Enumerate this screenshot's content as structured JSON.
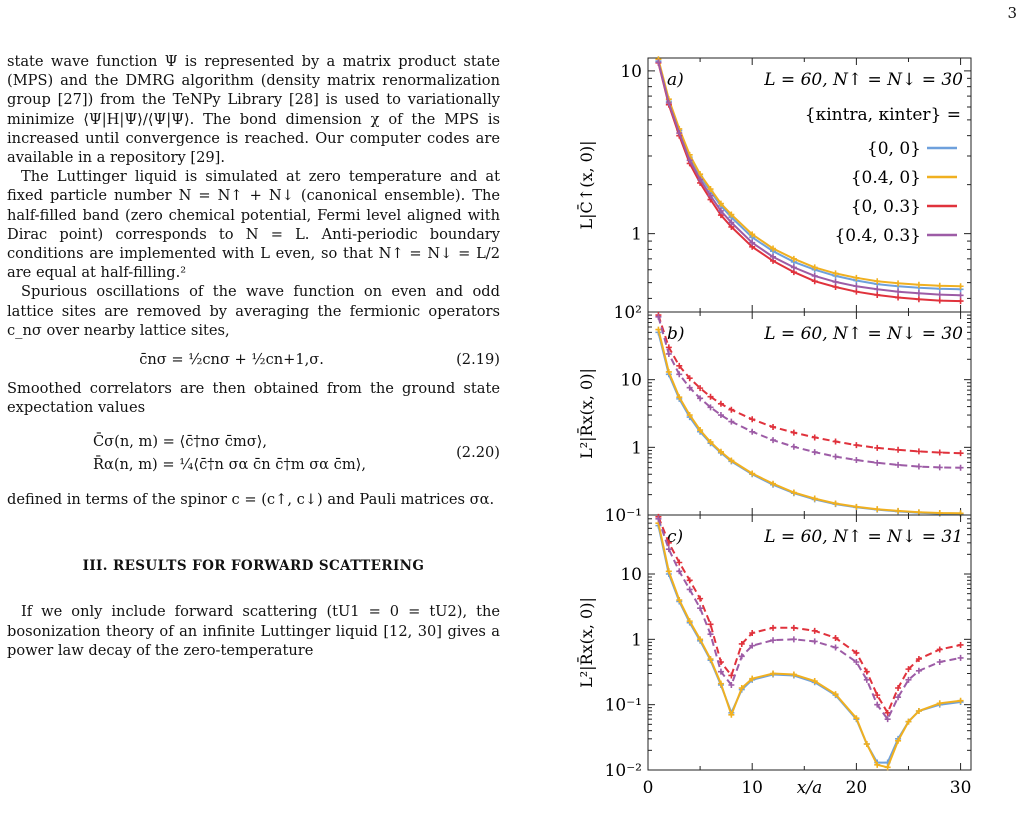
{
  "page_number": "3",
  "text": {
    "para1": "state wave function Ψ is represented by a matrix product state (MPS) and the DMRG algorithm (density matrix renormalization group [27]) from the TeNPy Library [28] is used to variationally minimize ⟨Ψ|H|Ψ⟩/⟨Ψ|Ψ⟩. The bond dimension χ of the MPS is increased until convergence is reached. Our computer codes are available in a repository [29].",
    "para2": "The Luttinger liquid is simulated at zero temperature and at fixed particle number N = N↑ + N↓ (canonical ensemble). The half-filled band (zero chemical potential, Fermi level aligned with Dirac point) corresponds to N = L. Anti-periodic boundary conditions are implemented with L even, so that N↑ = N↓ = L/2 are equal at half-filling.²",
    "para3": "Spurious oscillations of the wave function on even and odd lattice sites are removed by averaging the fermionic operators c_nσ over nearby lattice sites,",
    "eq219": "c̄nσ = ½cnσ + ½cn+1,σ.",
    "eq219_num": "(2.19)",
    "para4": "Smoothed correlators are then obtained from the ground state expectation values",
    "eq220_line1": "C̄σ(n, m) = ⟨c̄†nσ c̄mσ⟩,",
    "eq220_line2": "R̄α(n, m) = ¼⟨c̄†n σα c̄n  c̄†m σα c̄m⟩,",
    "eq220_num": "(2.20)",
    "para5": "defined in terms of the spinor c = (c↑, c↓) and Pauli matrices σα.",
    "heading": "III.   RESULTS FOR FORWARD SCATTERING",
    "para6": "If we only include forward scattering (tU1 = 0 = tU2), the bosonization theory of an infinite Luttinger liquid [12, 30] gives a power law decay of the zero-temperature"
  },
  "chart_data": [
    {
      "type": "line",
      "panel": "a)",
      "title": "L = 60,  N↑ = N↓ = 30",
      "ylabel": "L|C̄↑(x, 0)|",
      "yscale": "log",
      "ylim": [
        0.33,
        12
      ],
      "xlim": [
        0,
        31
      ],
      "yticks": [
        1,
        10
      ],
      "legend_title": "{κintra, κinter} =",
      "x": [
        1,
        2,
        3,
        4,
        5,
        6,
        7,
        8,
        10,
        12,
        14,
        16,
        18,
        20,
        22,
        24,
        26,
        28,
        30
      ],
      "series": [
        {
          "name": "{0, 0}",
          "color": "#6ea0dc",
          "values": [
            11.5,
            6.5,
            4.3,
            2.95,
            2.25,
            1.82,
            1.48,
            1.26,
            0.95,
            0.78,
            0.67,
            0.6,
            0.55,
            0.515,
            0.49,
            0.475,
            0.465,
            0.458,
            0.455
          ]
        },
        {
          "name": "{0.4, 0}",
          "color": "#f0b020",
          "values": [
            11.8,
            6.7,
            4.4,
            3.05,
            2.32,
            1.88,
            1.53,
            1.31,
            0.99,
            0.81,
            0.7,
            0.62,
            0.57,
            0.535,
            0.51,
            0.495,
            0.485,
            0.478,
            0.475
          ]
        },
        {
          "name": "{0, 0.3}",
          "color": "#e0323c",
          "values": [
            11.2,
            6.2,
            4.0,
            2.7,
            2.05,
            1.62,
            1.3,
            1.1,
            0.83,
            0.68,
            0.58,
            0.51,
            0.47,
            0.44,
            0.42,
            0.405,
            0.395,
            0.388,
            0.385
          ]
        },
        {
          "name": "{0.4, 0.3}",
          "color": "#9d5ca6",
          "values": [
            11.3,
            6.35,
            4.15,
            2.82,
            2.15,
            1.71,
            1.38,
            1.17,
            0.88,
            0.72,
            0.62,
            0.55,
            0.505,
            0.475,
            0.455,
            0.44,
            0.43,
            0.422,
            0.418
          ]
        }
      ]
    },
    {
      "type": "line",
      "panel": "b)",
      "title": "L = 60,  N↑ = N↓ = 30",
      "ylabel": "L²|R̄x(x, 0)|",
      "yscale": "log",
      "ylim": [
        0.1,
        100
      ],
      "xlim": [
        0,
        31
      ],
      "yticks": [
        "10⁻¹",
        "1",
        "10",
        "10²"
      ],
      "x": [
        1,
        2,
        3,
        4,
        5,
        6,
        7,
        8,
        10,
        12,
        14,
        16,
        18,
        20,
        22,
        24,
        26,
        28,
        30
      ],
      "series": [
        {
          "name": "{0, 0}",
          "color": "#6ea0dc",
          "values": [
            50,
            12,
            5.2,
            2.8,
            1.7,
            1.15,
            0.83,
            0.62,
            0.4,
            0.28,
            0.21,
            0.17,
            0.145,
            0.13,
            0.12,
            0.113,
            0.108,
            0.105,
            0.104
          ]
        },
        {
          "name": "{0.4, 0}",
          "color": "#f0b020",
          "values": [
            55,
            13,
            5.5,
            3.0,
            1.8,
            1.2,
            0.86,
            0.64,
            0.41,
            0.29,
            0.215,
            0.175,
            0.148,
            0.132,
            0.122,
            0.115,
            0.11,
            0.107,
            0.106
          ]
        },
        {
          "name": "{0, 0.3}",
          "color": "#e0323c",
          "values": [
            90,
            30,
            16,
            10.5,
            7.5,
            5.6,
            4.4,
            3.6,
            2.6,
            2.0,
            1.65,
            1.4,
            1.22,
            1.08,
            0.98,
            0.92,
            0.87,
            0.84,
            0.82
          ]
        },
        {
          "name": "{0.4, 0.3}",
          "color": "#9d5ca6",
          "values": [
            85,
            24,
            12,
            7.6,
            5.3,
            3.9,
            3.0,
            2.4,
            1.7,
            1.28,
            1.02,
            0.85,
            0.73,
            0.65,
            0.59,
            0.55,
            0.52,
            0.505,
            0.5
          ]
        }
      ]
    },
    {
      "type": "line",
      "panel": "c)",
      "title": "L = 60,  N↑ = N↓ = 31",
      "ylabel": "L²|R̄x(x, 0)|",
      "xlabel": "x/a",
      "yscale": "log",
      "ylim": [
        0.01,
        80
      ],
      "xlim": [
        0,
        31
      ],
      "xticks": [
        0,
        10,
        20,
        30
      ],
      "yticks": [
        "10⁻²",
        "10⁻¹",
        "1",
        "10"
      ],
      "x": [
        1,
        2,
        3,
        4,
        5,
        6,
        7,
        8,
        9,
        10,
        12,
        14,
        16,
        18,
        20,
        21,
        22,
        23,
        24,
        25,
        26,
        28,
        30
      ],
      "series": [
        {
          "name": "{0, 0}",
          "color": "#6ea0dc",
          "values": [
            55,
            10,
            3.8,
            1.8,
            0.95,
            0.48,
            0.2,
            0.075,
            0.17,
            0.24,
            0.29,
            0.28,
            0.22,
            0.14,
            0.06,
            0.025,
            0.013,
            0.013,
            0.03,
            0.055,
            0.08,
            0.1,
            0.11
          ]
        },
        {
          "name": "{0.4, 0}",
          "color": "#f0b020",
          "values": [
            60,
            11,
            4.0,
            1.9,
            1.0,
            0.5,
            0.21,
            0.07,
            0.18,
            0.25,
            0.3,
            0.29,
            0.23,
            0.145,
            0.062,
            0.025,
            0.012,
            0.011,
            0.028,
            0.055,
            0.08,
            0.105,
            0.115
          ]
        },
        {
          "name": "{0, 0.3}",
          "color": "#e0323c",
          "values": [
            75,
            30,
            15,
            8.0,
            4.2,
            1.7,
            0.45,
            0.28,
            0.85,
            1.25,
            1.5,
            1.5,
            1.35,
            1.05,
            0.62,
            0.32,
            0.14,
            0.075,
            0.18,
            0.35,
            0.5,
            0.7,
            0.82
          ]
        },
        {
          "name": "{0.4, 0.3}",
          "color": "#9d5ca6",
          "values": [
            70,
            24,
            11,
            5.8,
            3.0,
            1.2,
            0.32,
            0.2,
            0.55,
            0.8,
            0.97,
            1.0,
            0.93,
            0.75,
            0.45,
            0.24,
            0.1,
            0.06,
            0.13,
            0.24,
            0.33,
            0.45,
            0.52
          ]
        }
      ]
    }
  ]
}
